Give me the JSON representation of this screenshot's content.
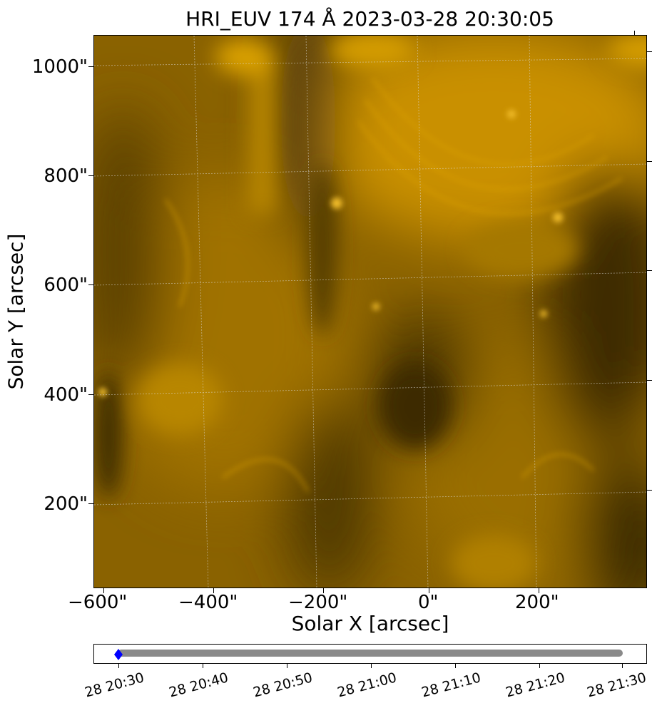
{
  "figure": {
    "title": "HRI_EUV 174 Å 2023-03-28 20:30:05",
    "xlabel": "Solar X [arcsec]",
    "ylabel": "Solar Y [arcsec]",
    "x_ticks": [
      "−600\"",
      "−400\"",
      "−200\"",
      "0\"",
      "200\""
    ],
    "y_ticks": [
      "1000\"",
      "800\"",
      "600\"",
      "400\"",
      "200\""
    ],
    "colormap": "solar orange",
    "colors": {
      "dark": "#3a2a05",
      "mid": "#9c7000",
      "bright": "#e8a800"
    }
  },
  "timeline": {
    "ticks": [
      "28 20:30",
      "28 20:40",
      "28 20:50",
      "28 21:00",
      "28 21:10",
      "28 21:20",
      "28 21:30"
    ],
    "current": "28 20:30",
    "bar_color": "#8a8a8a",
    "marker_color": "#0000ff",
    "marker_icon": "diamond-icon"
  }
}
